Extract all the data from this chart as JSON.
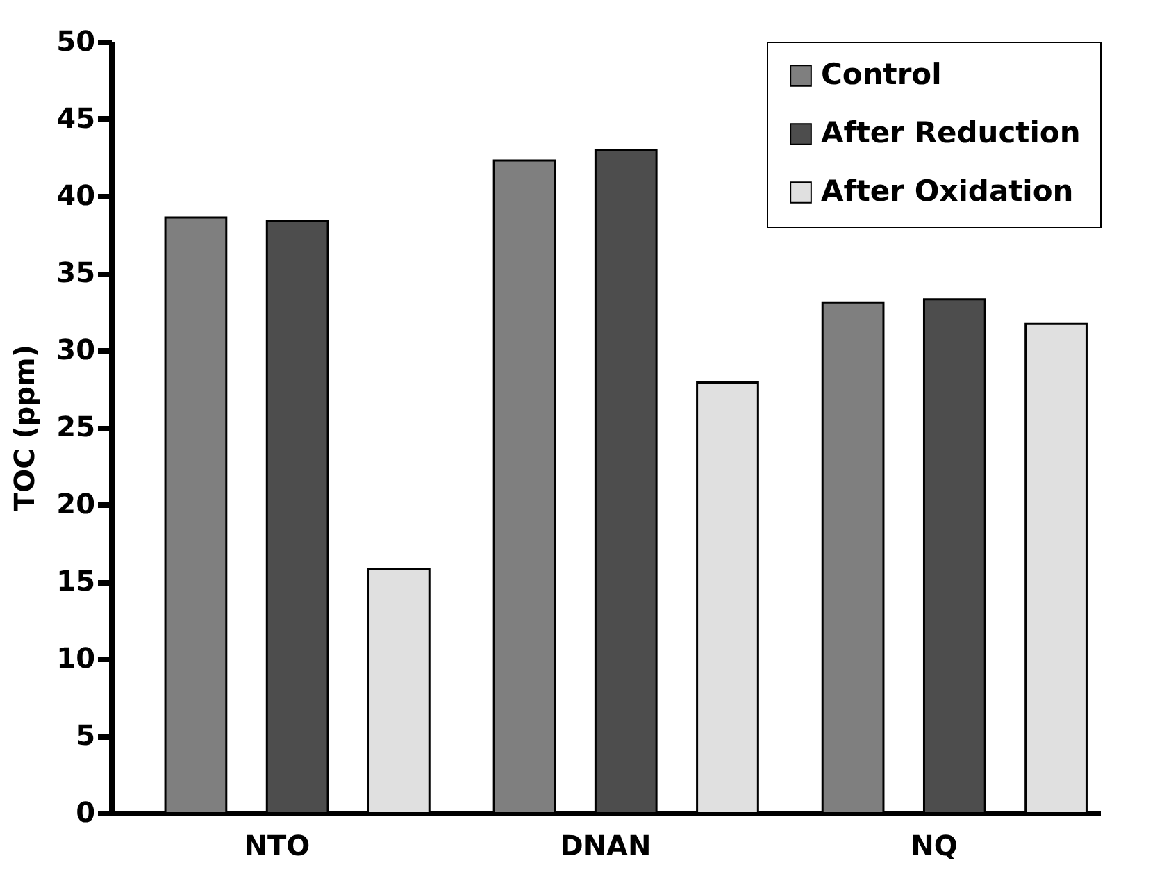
{
  "chart_data": {
    "type": "bar",
    "ylabel": "TOC (ppm)",
    "categories": [
      "NTO",
      "DNAN",
      "NQ"
    ],
    "series": [
      {
        "name": "Control",
        "color": "#7f7f7f",
        "values": [
          38.6,
          42.3,
          33.1
        ]
      },
      {
        "name": "After Reduction",
        "color": "#4d4d4d",
        "values": [
          38.4,
          43.0,
          33.3
        ]
      },
      {
        "name": "After Oxidation",
        "color": "#e0e0e0",
        "values": [
          15.8,
          27.9,
          31.7
        ]
      }
    ],
    "ylim": [
      0,
      50
    ],
    "yticks": [
      0,
      5,
      10,
      15,
      20,
      25,
      30,
      35,
      40,
      45,
      50
    ],
    "grid": false,
    "legend": "top right"
  }
}
